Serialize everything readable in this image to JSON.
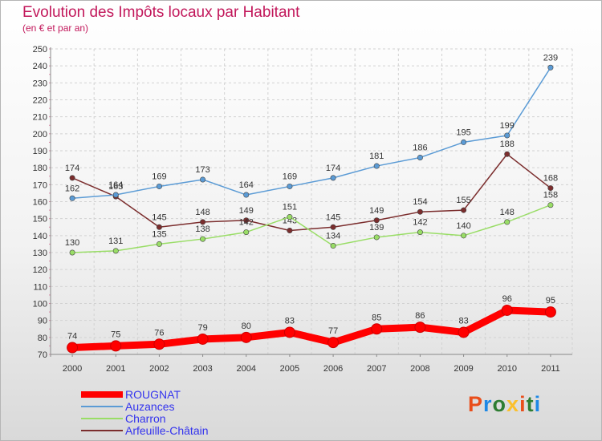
{
  "title": "Evolution des Impôts locaux par Habitant",
  "subtitle": "(en € et par an)",
  "logo": {
    "text": "Proxiti",
    "letters": [
      "P",
      "r",
      "o",
      "x",
      "i",
      "t",
      "i"
    ],
    "colors": [
      "#e94e1b",
      "#1e88e5",
      "#2e7d32",
      "#fbc02d",
      "#e94e1b",
      "#2e7d32",
      "#1e88e5"
    ]
  },
  "chart_data": {
    "type": "line",
    "title": "Evolution des Impôts locaux par Habitant",
    "subtitle": "(en € et par an)",
    "xlabel": "",
    "ylabel": "",
    "categories": [
      "2000",
      "2001",
      "2002",
      "2003",
      "2004",
      "2005",
      "2006",
      "2007",
      "2008",
      "2009",
      "2010",
      "2011"
    ],
    "ylim": [
      70,
      250
    ],
    "ytick_step": 10,
    "yticks": [
      "70",
      "80",
      "90",
      "100",
      "110",
      "120",
      "130",
      "140",
      "150",
      "160",
      "170",
      "180",
      "190",
      "200",
      "210",
      "220",
      "230",
      "240",
      "250"
    ],
    "grid": true,
    "legend_position": "bottom-left",
    "series": [
      {
        "name": "ROUGNAT",
        "color": "#ff0000",
        "values": [
          74,
          75,
          76,
          79,
          80,
          83,
          77,
          85,
          86,
          83,
          96,
          95
        ],
        "labels": [
          "74",
          "75",
          "76",
          "79",
          "80",
          "83",
          "77",
          "85",
          "86",
          "83",
          "96",
          "95"
        ],
        "highlight": true
      },
      {
        "name": "Auzances",
        "color": "#5b9bd5",
        "values": [
          162,
          164,
          169,
          173,
          164,
          169,
          174,
          181,
          186,
          195,
          199,
          239
        ],
        "labels": [
          "162",
          "164",
          "169",
          "173",
          "164",
          "169",
          "174",
          "181",
          "186",
          "195",
          "199",
          "239"
        ]
      },
      {
        "name": "Charron",
        "color": "#99dd66",
        "values": [
          130,
          131,
          135,
          138,
          142,
          151,
          134,
          139,
          142,
          140,
          148,
          158
        ],
        "labels": [
          "130",
          "131",
          "135",
          "138",
          "142",
          "151",
          "134",
          "139",
          "142",
          "140",
          "148",
          "158"
        ]
      },
      {
        "name": "Arfeuille-Châtain",
        "color": "#7b2d2d",
        "values": [
          174,
          163,
          145,
          148,
          149,
          143,
          145,
          149,
          154,
          155,
          188,
          168
        ],
        "labels": [
          "174",
          "163",
          "145",
          "148",
          "149",
          "143",
          "145",
          "149",
          "154",
          "155",
          "188",
          "168"
        ]
      }
    ]
  }
}
